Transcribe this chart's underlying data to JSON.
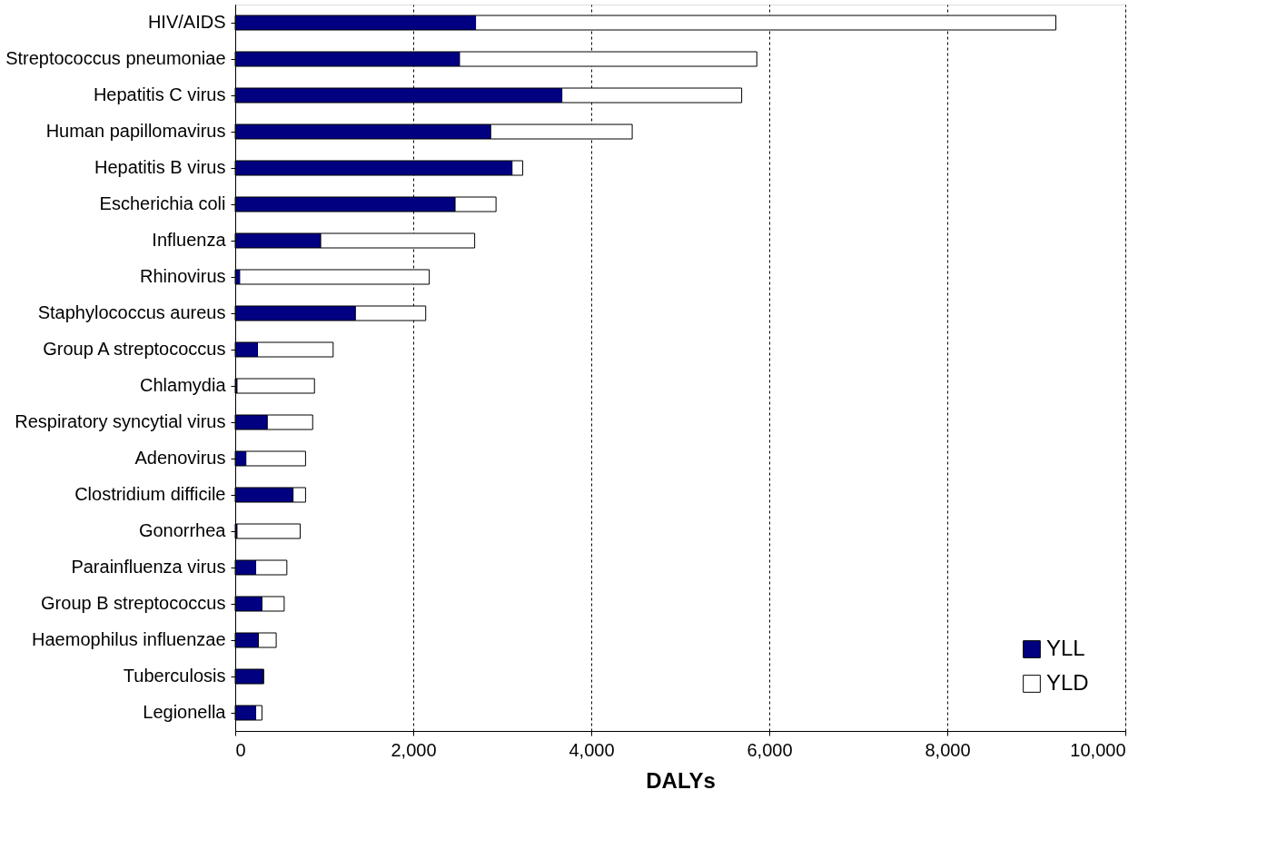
{
  "chart_data": {
    "type": "bar",
    "orientation": "horizontal",
    "stacked": true,
    "xlabel": "DALYs",
    "categories": [
      "HIV/AIDS",
      "Streptococcus pneumoniae",
      "Hepatitis C virus",
      "Human papillomavirus",
      "Hepatitis B virus",
      "Escherichia coli",
      "Influenza",
      "Rhinovirus",
      "Staphylococcus aureus",
      "Group A streptococcus",
      "Chlamydia",
      "Respiratory syncytial virus",
      "Adenovirus",
      "Clostridium difficile",
      "Gonorrhea",
      "Parainfluenza virus",
      "Group B streptococcus",
      "Haemophilus influenzae",
      "Tuberculosis",
      "Legionella"
    ],
    "series": [
      {
        "name": "YLL",
        "color": "#000080",
        "values": [
          2700,
          2520,
          3670,
          2870,
          3110,
          2470,
          960,
          50,
          1350,
          250,
          20,
          360,
          120,
          650,
          20,
          230,
          300,
          260,
          310,
          230
        ]
      },
      {
        "name": "YLD",
        "color": "#ffffff",
        "values": [
          6520,
          3340,
          2020,
          1590,
          120,
          460,
          1730,
          2130,
          790,
          850,
          870,
          510,
          670,
          140,
          710,
          350,
          250,
          200,
          10,
          70
        ]
      }
    ],
    "xlim": [
      0,
      10000
    ],
    "xticks": [
      0,
      {
        "value": 2000,
        "label": "2,000"
      },
      {
        "value": 4000,
        "label": "4,000"
      },
      {
        "value": 6000,
        "label": "6,000"
      },
      {
        "value": 8000,
        "label": "8,000"
      },
      {
        "value": 10000,
        "label": "10,000"
      }
    ],
    "grid": "x",
    "legend": "bottom right"
  }
}
